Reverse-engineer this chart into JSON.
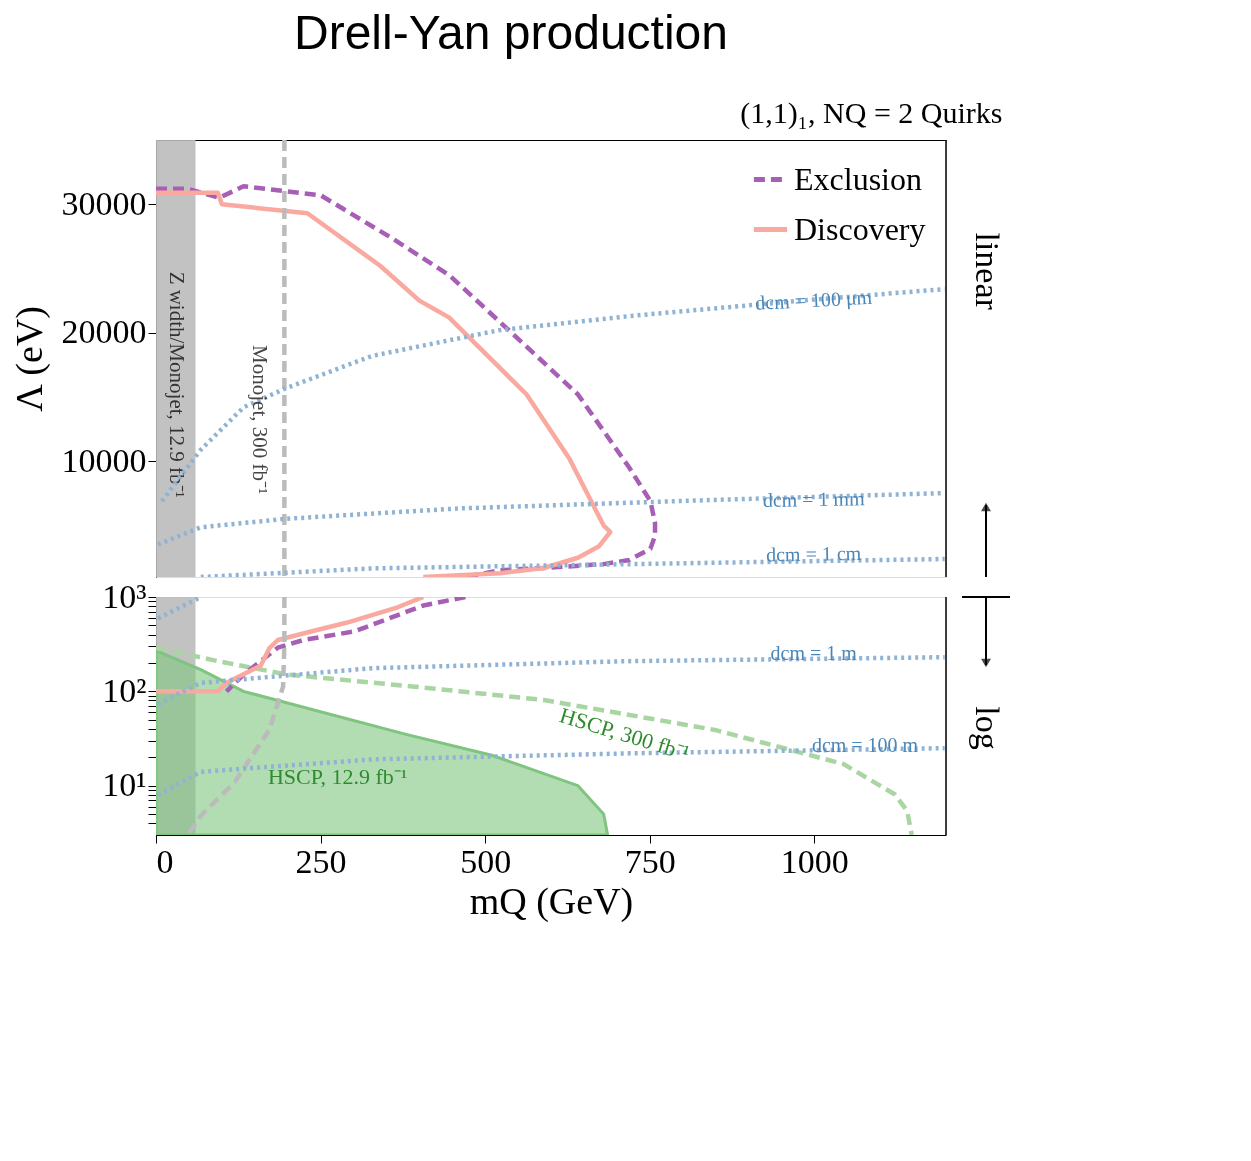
{
  "chart_data": [
    {
      "type": "line",
      "title": "Drell-Yan production",
      "subtitle": "(1,1)₁, NQ = 2 Quirks",
      "ylabel": "Λ (eV)",
      "xlim": [
        0,
        1200
      ],
      "ylim": [
        1000,
        35000
      ],
      "yticks": [
        10000,
        20000,
        30000
      ],
      "tick_labels": "y",
      "legend": "top right",
      "grid": false,
      "bands": [
        {
          "axis": "x",
          "from": 0,
          "to": 60,
          "color": "#bbbbbb",
          "label": "Z width/Monojet, 12.9 fb⁻¹"
        }
      ],
      "series": [
        {
          "name": "Exclusion",
          "color": "#a65fb5",
          "line_style": "dashed",
          "x": [
            0,
            48,
            96,
            133,
            250,
            354,
            445,
            536,
            641,
            719,
            751,
            758,
            758,
            751,
            719,
            680,
            589,
            523,
            470
          ],
          "values": [
            31200,
            31200,
            30500,
            31400,
            30700,
            27500,
            24500,
            20200,
            15200,
            9500,
            6900,
            5200,
            4200,
            3200,
            2330,
            2000,
            1700,
            1530,
            1000
          ]
        },
        {
          "name": "Discovery",
          "color": "#f9a99f",
          "line_style": "solid",
          "x": [
            0,
            94,
            100,
            230,
            341,
            400,
            445,
            563,
            628,
            680,
            690,
            673,
            641,
            589,
            523,
            406
          ],
          "values": [
            30900,
            30900,
            30000,
            29300,
            25200,
            22500,
            21200,
            15200,
            10200,
            5000,
            4500,
            3400,
            2500,
            1700,
            1300,
            1000
          ]
        },
        {
          "color": "#bbbbbb",
          "line_style": "dashed",
          "x": [
            195,
            195
          ],
          "values": [
            35000,
            1000
          ]
        },
        {
          "color": "#8fb3d4",
          "line_style": "dotted",
          "x": [
            9,
            68,
            133,
            198,
            328,
            521,
            719,
            979,
            1198
          ],
          "values": [
            6900,
            10900,
            14200,
            15700,
            18200,
            20200,
            21300,
            22500,
            23400
          ]
        },
        {
          "color": "#8fb3d4",
          "line_style": "dotted",
          "x": [
            3,
            68,
            198,
            458,
            849,
            1198
          ],
          "values": [
            3530,
            4870,
            5530,
            6330,
            7000,
            7530
          ]
        },
        {
          "color": "#8fb3d4",
          "line_style": "dotted",
          "x": [
            68,
            328,
            719,
            1198
          ],
          "values": [
            1000,
            1670,
            2000,
            2400
          ]
        }
      ],
      "annotations": [
        "Monojet, 300 fb⁻¹",
        "dcm = 100 μm",
        "dcm = 1 mm",
        "dcm = 1 cm",
        "linear"
      ]
    },
    {
      "type": "line",
      "xlabel": "mQ (GeV)",
      "log": "y",
      "xlim": [
        0,
        1200
      ],
      "xticks": [
        0,
        250,
        500,
        750,
        1000
      ],
      "ylim": [
        3,
        1000
      ],
      "yticks": [
        {
          "value": 4,
          "label": null
        },
        {
          "value": 5,
          "label": null
        },
        {
          "value": 6,
          "label": null
        },
        {
          "value": 7,
          "label": null
        },
        {
          "value": 8,
          "label": null
        },
        {
          "value": 9,
          "label": null
        },
        {
          "value": 10,
          "label": "10¹"
        },
        {
          "value": 20,
          "label": null
        },
        {
          "value": 30,
          "label": null
        },
        {
          "value": 40,
          "label": null
        },
        {
          "value": 50,
          "label": null
        },
        {
          "value": 60,
          "label": null
        },
        {
          "value": 70,
          "label": null
        },
        {
          "value": 80,
          "label": null
        },
        {
          "value": 90,
          "label": null
        },
        {
          "value": 100,
          "label": "10²"
        },
        {
          "value": 200,
          "label": null
        },
        {
          "value": 300,
          "label": null
        },
        {
          "value": 400,
          "label": null
        },
        {
          "value": 500,
          "label": null
        },
        {
          "value": 600,
          "label": null
        },
        {
          "value": 700,
          "label": null
        },
        {
          "value": 800,
          "label": null
        },
        {
          "value": 900,
          "label": null
        },
        {
          "value": 1000,
          "label": "10³"
        }
      ],
      "grid": false,
      "bands": [
        {
          "axis": "x",
          "from": 0,
          "to": 60,
          "color": "#bbbbbb"
        }
      ],
      "series": [
        {
          "type": "area",
          "color": "#7fc47f",
          "x": [
            0,
            68,
            133,
            380,
            510,
            641,
            680,
            686
          ],
          "values": [
            270,
            170,
            100,
            35,
            21,
            10,
            5,
            3
          ]
        },
        {
          "color": "#a8d5a2",
          "line_style": "dashed",
          "x": [
            0,
            94,
            198,
            393,
            589,
            849,
            1044,
            1122,
            1141,
            1148
          ],
          "values": [
            290,
            209,
            151,
            112,
            81,
            39,
            17,
            8.1,
            5.4,
            3
          ]
        },
        {
          "color": "#a65fb5",
          "line_style": "dashed",
          "x": [
            470,
            406,
            302,
            224,
            185,
            159,
            133,
            107
          ],
          "values": [
            1000,
            812,
            433,
            350,
            290,
            209,
            150,
            100
          ]
        },
        {
          "color": "#f9a99f",
          "line_style": "solid",
          "x": [
            406,
            367,
            289,
            237,
            185,
            172,
            159,
            107,
            94,
            0
          ],
          "values": [
            1000,
            778,
            533,
            433,
            350,
            285,
            187,
            123,
            100,
            100
          ]
        },
        {
          "color": "#bbbbbb",
          "line_style": "dashed",
          "x": [
            195,
            195,
            193,
            172,
            120,
            68,
            48
          ],
          "values": [
            1000,
            316,
            112,
            39,
            11,
            4.8,
            3
          ]
        },
        {
          "color": "#8fb3d4",
          "line_style": "dotted",
          "x": [
            3,
            68
          ],
          "values": [
            593,
            1000
          ]
        },
        {
          "color": "#8fb3d4",
          "line_style": "dotted",
          "x": [
            3,
            68,
            328,
            719,
            1198
          ],
          "values": [
            73,
            123,
            176,
            209,
            230
          ]
        },
        {
          "color": "#8fb3d4",
          "line_style": "dotted",
          "x": [
            3,
            68,
            328,
            719,
            1198
          ],
          "values": [
            8,
            14,
            19,
            22,
            25
          ]
        }
      ],
      "annotations": [
        "HSCP, 12.9 fb⁻¹",
        "HSCP, 300 fb⁻¹",
        "dcm = 1 m",
        "dcm = 100 m",
        "log"
      ]
    }
  ]
}
